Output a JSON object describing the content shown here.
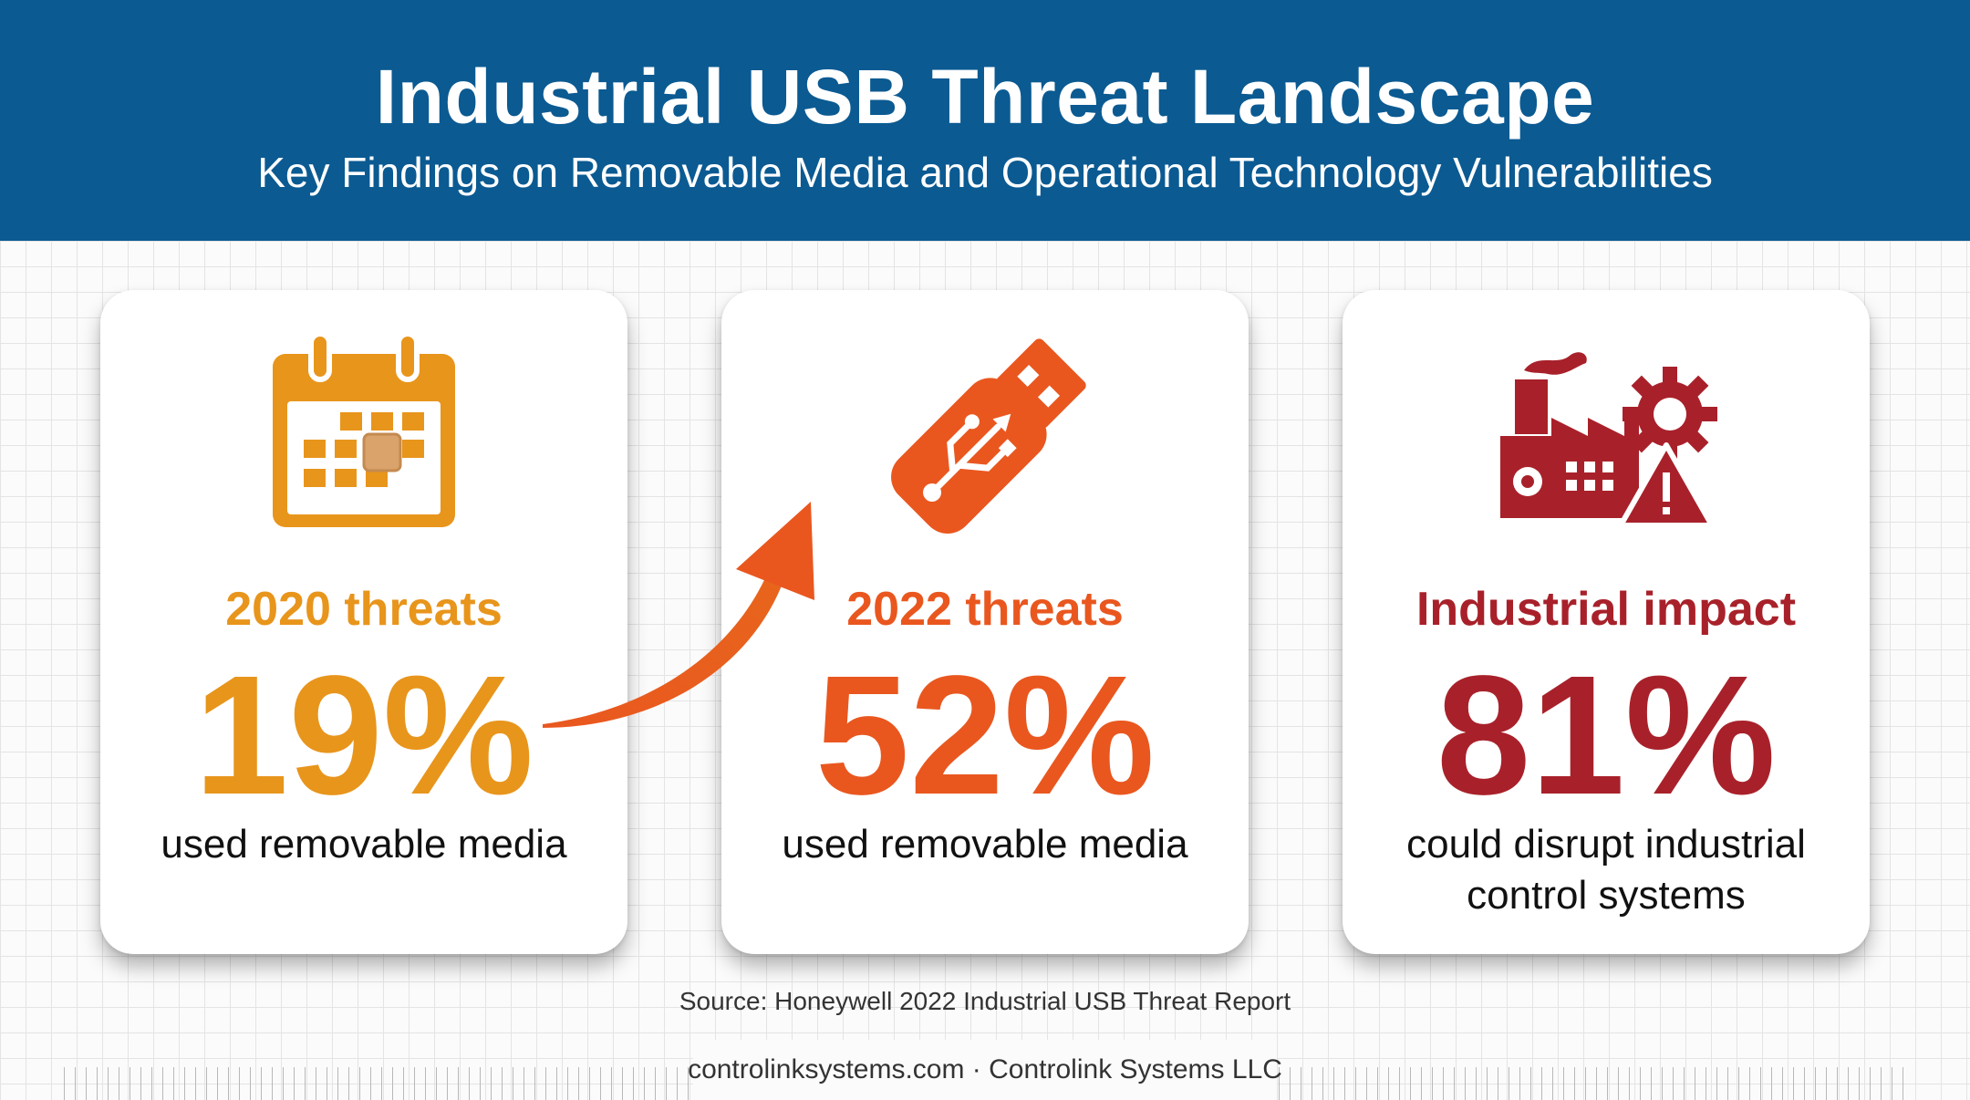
{
  "header": {
    "title": "Industrial USB Threat Landscape",
    "subtitle": "Key Findings on Removable Media and Operational Technology Vulnerabilities"
  },
  "cards": [
    {
      "icon": "calendar-icon",
      "label": "2020 threats",
      "value": "19%",
      "description": "used removable media",
      "color": "#e8951c"
    },
    {
      "icon": "usb-drive-icon",
      "label": "2022 threats",
      "value": "52%",
      "description": "used removable media",
      "color": "#e9571f"
    },
    {
      "icon": "factory-warning-icon",
      "label": "Industrial impact",
      "value": "81%",
      "description": "could disrupt industrial control systems",
      "color": "#a8212a"
    }
  ],
  "source": "Source: Honeywell 2022 Industrial USB Threat Report",
  "credit": "controlinksystems.com · Controlink Systems LLC",
  "colors": {
    "header_bg": "#0b5a92",
    "orange": "#e8951c",
    "red_orange": "#e9571f",
    "dark_red": "#a8212a"
  }
}
